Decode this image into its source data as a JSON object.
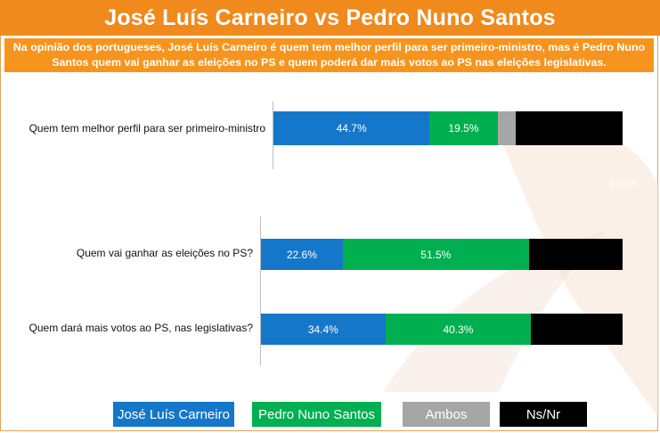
{
  "header": {
    "title": "José Luís Carneiro vs Pedro Nuno Santos",
    "subtitle": "Na opinião dos portugueses, José Luís Carneiro é quem tem melhor perfil para ser primeiro-ministro, mas é Pedro Nuno Santos quem vai ganhar as eleições no PS e quem poderá dar mais votos ao PS nas eleições legislativas."
  },
  "colors": {
    "header_bg": "#f08a1c",
    "subtitle_bg": "#f7941d",
    "jlc": "#1577c9",
    "pns": "#00b050",
    "ambos": "#a6a6a6",
    "nsnr": "#000000"
  },
  "chart_data": {
    "type": "bar",
    "orientation": "horizontal",
    "stacked": true,
    "xlim": [
      0,
      100
    ],
    "categories": [
      "Quem tem melhor perfil para ser primeiro-ministro",
      "Quem vai ganhar as eleições no PS?",
      "Quem dará mais votos ao PS, nas legislativas?"
    ],
    "series": [
      {
        "name": "José Luís Carneiro",
        "color": "#1577c9",
        "values": [
          44.7,
          22.6,
          34.4
        ],
        "labels": [
          "44.7%",
          "22.6%",
          "34.4%"
        ]
      },
      {
        "name": "Pedro Nuno Santos",
        "color": "#00b050",
        "values": [
          19.5,
          51.5,
          40.3
        ],
        "labels": [
          "19.5%",
          "51.5%",
          "40.3%"
        ]
      },
      {
        "name": "Ambos",
        "color": "#a6a6a6",
        "values": [
          5.2,
          0,
          0
        ],
        "labels": [
          "",
          "",
          ""
        ]
      },
      {
        "name": "Ns/Nr",
        "color": "#000000",
        "values": [
          30.6,
          25.9,
          25.3
        ],
        "labels": [
          "",
          "",
          ""
        ]
      }
    ],
    "ghost_tick": "100%",
    "legend": {
      "position": "bottom"
    }
  }
}
